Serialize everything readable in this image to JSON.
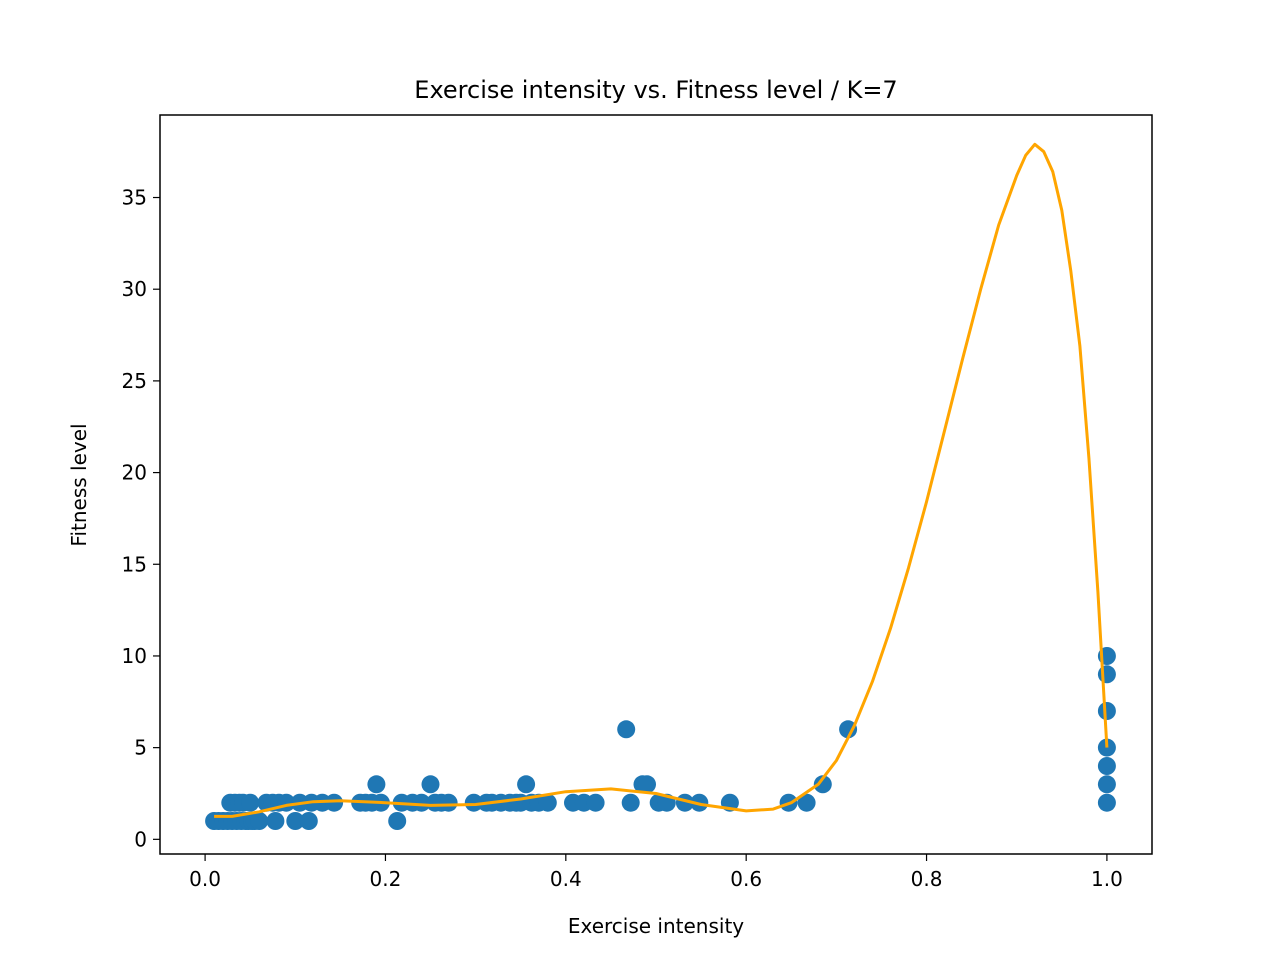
{
  "chart_data": {
    "type": "scatter",
    "title": "Exercise intensity vs. Fitness level / K=7",
    "xlabel": "Exercise intensity",
    "ylabel": "Fitness level",
    "xlim": [
      -0.05,
      1.05
    ],
    "ylim": [
      -0.8,
      39.5
    ],
    "xticks": [
      0.0,
      0.2,
      0.4,
      0.6,
      0.8,
      1.0
    ],
    "xtick_labels": [
      "0.0",
      "0.2",
      "0.4",
      "0.6",
      "0.8",
      "1.0"
    ],
    "yticks": [
      0,
      5,
      10,
      15,
      20,
      25,
      30,
      35
    ],
    "ytick_labels": [
      "0",
      "5",
      "10",
      "15",
      "20",
      "25",
      "30",
      "35"
    ],
    "grid": false,
    "colors": {
      "points": "#1f77b4",
      "curve": "#ffa500"
    },
    "scatter": [
      {
        "x": 0.01,
        "y": 1
      },
      {
        "x": 0.015,
        "y": 1
      },
      {
        "x": 0.02,
        "y": 1
      },
      {
        "x": 0.025,
        "y": 1
      },
      {
        "x": 0.028,
        "y": 2
      },
      {
        "x": 0.03,
        "y": 1
      },
      {
        "x": 0.033,
        "y": 2
      },
      {
        "x": 0.035,
        "y": 1
      },
      {
        "x": 0.038,
        "y": 2
      },
      {
        "x": 0.04,
        "y": 1
      },
      {
        "x": 0.042,
        "y": 2
      },
      {
        "x": 0.045,
        "y": 1
      },
      {
        "x": 0.048,
        "y": 1
      },
      {
        "x": 0.05,
        "y": 2
      },
      {
        "x": 0.052,
        "y": 1
      },
      {
        "x": 0.055,
        "y": 1
      },
      {
        "x": 0.06,
        "y": 1
      },
      {
        "x": 0.068,
        "y": 2
      },
      {
        "x": 0.075,
        "y": 2
      },
      {
        "x": 0.078,
        "y": 1
      },
      {
        "x": 0.082,
        "y": 2
      },
      {
        "x": 0.09,
        "y": 2
      },
      {
        "x": 0.1,
        "y": 1
      },
      {
        "x": 0.105,
        "y": 2
      },
      {
        "x": 0.115,
        "y": 1
      },
      {
        "x": 0.118,
        "y": 2
      },
      {
        "x": 0.13,
        "y": 2
      },
      {
        "x": 0.143,
        "y": 2
      },
      {
        "x": 0.172,
        "y": 2
      },
      {
        "x": 0.178,
        "y": 2
      },
      {
        "x": 0.185,
        "y": 2
      },
      {
        "x": 0.19,
        "y": 3
      },
      {
        "x": 0.195,
        "y": 2
      },
      {
        "x": 0.213,
        "y": 1
      },
      {
        "x": 0.218,
        "y": 2
      },
      {
        "x": 0.23,
        "y": 2
      },
      {
        "x": 0.24,
        "y": 2
      },
      {
        "x": 0.25,
        "y": 3
      },
      {
        "x": 0.255,
        "y": 2
      },
      {
        "x": 0.262,
        "y": 2
      },
      {
        "x": 0.27,
        "y": 2
      },
      {
        "x": 0.298,
        "y": 2
      },
      {
        "x": 0.312,
        "y": 2
      },
      {
        "x": 0.318,
        "y": 2
      },
      {
        "x": 0.328,
        "y": 2
      },
      {
        "x": 0.338,
        "y": 2
      },
      {
        "x": 0.345,
        "y": 2
      },
      {
        "x": 0.35,
        "y": 2
      },
      {
        "x": 0.356,
        "y": 3
      },
      {
        "x": 0.362,
        "y": 2
      },
      {
        "x": 0.37,
        "y": 2
      },
      {
        "x": 0.38,
        "y": 2
      },
      {
        "x": 0.408,
        "y": 2
      },
      {
        "x": 0.42,
        "y": 2
      },
      {
        "x": 0.433,
        "y": 2
      },
      {
        "x": 0.467,
        "y": 6
      },
      {
        "x": 0.472,
        "y": 2
      },
      {
        "x": 0.485,
        "y": 3
      },
      {
        "x": 0.49,
        "y": 3
      },
      {
        "x": 0.503,
        "y": 2
      },
      {
        "x": 0.512,
        "y": 2
      },
      {
        "x": 0.532,
        "y": 2
      },
      {
        "x": 0.548,
        "y": 2
      },
      {
        "x": 0.582,
        "y": 2
      },
      {
        "x": 0.647,
        "y": 2
      },
      {
        "x": 0.667,
        "y": 2
      },
      {
        "x": 0.685,
        "y": 3
      },
      {
        "x": 0.713,
        "y": 6
      },
      {
        "x": 1.0,
        "y": 10
      },
      {
        "x": 1.0,
        "y": 9
      },
      {
        "x": 1.0,
        "y": 7
      },
      {
        "x": 1.0,
        "y": 5
      },
      {
        "x": 1.0,
        "y": 4
      },
      {
        "x": 1.0,
        "y": 3
      },
      {
        "x": 1.0,
        "y": 2
      }
    ],
    "curve": [
      [
        0.01,
        1.25
      ],
      [
        0.03,
        1.25
      ],
      [
        0.06,
        1.5
      ],
      [
        0.09,
        1.85
      ],
      [
        0.12,
        2.05
      ],
      [
        0.15,
        2.1
      ],
      [
        0.2,
        2.0
      ],
      [
        0.25,
        1.85
      ],
      [
        0.3,
        1.9
      ],
      [
        0.35,
        2.2
      ],
      [
        0.4,
        2.6
      ],
      [
        0.45,
        2.75
      ],
      [
        0.5,
        2.5
      ],
      [
        0.55,
        1.9
      ],
      [
        0.6,
        1.55
      ],
      [
        0.63,
        1.65
      ],
      [
        0.65,
        2.0
      ],
      [
        0.68,
        3.0
      ],
      [
        0.7,
        4.3
      ],
      [
        0.72,
        6.2
      ],
      [
        0.74,
        8.6
      ],
      [
        0.76,
        11.5
      ],
      [
        0.78,
        14.8
      ],
      [
        0.8,
        18.4
      ],
      [
        0.82,
        22.3
      ],
      [
        0.84,
        26.2
      ],
      [
        0.86,
        30.0
      ],
      [
        0.88,
        33.5
      ],
      [
        0.9,
        36.2
      ],
      [
        0.91,
        37.3
      ],
      [
        0.92,
        37.9
      ],
      [
        0.93,
        37.5
      ],
      [
        0.94,
        36.4
      ],
      [
        0.95,
        34.3
      ],
      [
        0.96,
        31.0
      ],
      [
        0.97,
        26.9
      ],
      [
        0.98,
        20.8
      ],
      [
        0.99,
        13.5
      ],
      [
        1.0,
        5.0
      ]
    ]
  }
}
